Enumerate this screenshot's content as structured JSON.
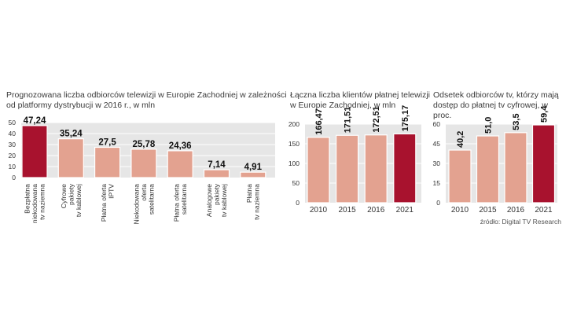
{
  "colors": {
    "bar": "#e3a290",
    "bar_highlight": "#a8122e",
    "panel": "#e6e6e6",
    "grid": "#ffffff",
    "axis_text": "#333333",
    "value_text": "#111111"
  },
  "chart_data": [
    {
      "type": "bar",
      "title": "Prognozowana liczba odbiorców telewizji w Europie Zachodniej w zależności od platformy dystrybucji w 2016 r., w mln",
      "title_lines": [
        "Prognozowana liczba odbiorców telewizji w Europie Zachodniej w zależności",
        "od platformy dystrybucji w 2016 r., w mln"
      ],
      "categories": [
        [
          "Bezpłatna",
          "niekodowana",
          "tv naziemna"
        ],
        [
          "Cyfrowe",
          "pakiety",
          "tv kablowej"
        ],
        [
          "Płatna oferta",
          "IPTV"
        ],
        [
          "Niekodowana",
          "oferta",
          "satelitarna"
        ],
        [
          "Płatna oferta",
          "satelitarna"
        ],
        [
          "Analogowe",
          "pakiety",
          "tv kablowej"
        ],
        [
          "Płatna",
          "tv naziemna"
        ]
      ],
      "values": [
        47.24,
        35.24,
        27.5,
        25.78,
        24.36,
        7.14,
        4.91
      ],
      "value_labels": [
        "47,24",
        "35,24",
        "27,5",
        "25,78",
        "24,36",
        "7,14",
        "4,91"
      ],
      "highlight_index": 0,
      "ylim": [
        0,
        50
      ],
      "yticks": [
        "0",
        "10",
        "20",
        "30",
        "40",
        "50"
      ],
      "xlabel": "",
      "ylabel": ""
    },
    {
      "type": "bar",
      "title": "Łączna liczba klientów płatnej telewizji w Europie Zachodniej, w mln",
      "title_lines": [
        "Łączna liczba klientów płatnej telewizji",
        "w Europie Zachodniej, w mln"
      ],
      "categories": [
        "2010",
        "2015",
        "2016",
        "2021"
      ],
      "values": [
        166.47,
        171.51,
        172.51,
        175.17
      ],
      "value_labels": [
        "166,47",
        "171,51",
        "172,51",
        "175,17"
      ],
      "highlight_index": 3,
      "ylim": [
        0,
        200
      ],
      "yticks": [
        "0",
        "50",
        "100",
        "150",
        "200"
      ],
      "xlabel": "",
      "ylabel": ""
    },
    {
      "type": "bar",
      "title": "Odsetek odbiorców tv, którzy mają dostęp do płatnej tv cyfrowej, w proc.",
      "title_lines": [
        "Odsetek odbiorców tv, którzy mają",
        "dostęp do płatnej tv cyfrowej, w proc."
      ],
      "categories": [
        "2010",
        "2015",
        "2016",
        "2021"
      ],
      "values": [
        40.2,
        51.0,
        53.5,
        59.4
      ],
      "value_labels": [
        "40,2",
        "51,0",
        "53,5",
        "59,4"
      ],
      "highlight_index": 3,
      "ylim": [
        0,
        60
      ],
      "yticks": [
        "0",
        "15",
        "30",
        "45",
        "60"
      ],
      "xlabel": "",
      "ylabel": ""
    }
  ],
  "source": "źródło: Digital TV Research"
}
